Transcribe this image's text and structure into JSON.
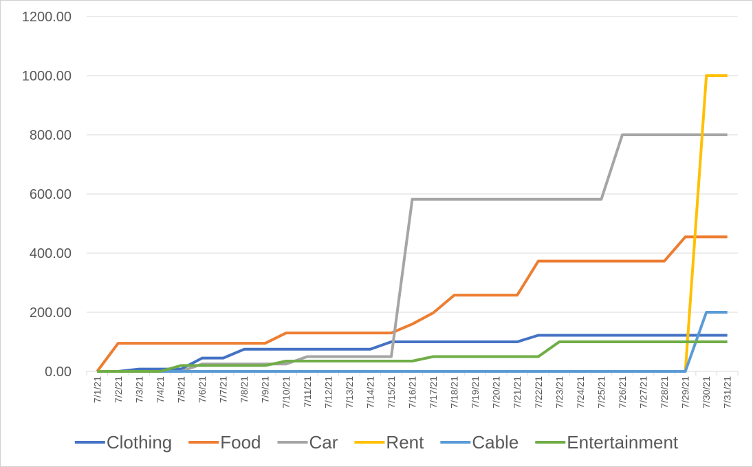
{
  "chart_data": {
    "type": "line",
    "title": "",
    "xlabel": "",
    "ylabel": "",
    "ylim": [
      0,
      1200
    ],
    "y_ticks": [
      "0.00",
      "200.00",
      "400.00",
      "600.00",
      "800.00",
      "1000.00",
      "1200.00"
    ],
    "grid": true,
    "legend_position": "bottom",
    "categories": [
      "7/1/21",
      "7/2/21",
      "7/3/21",
      "7/4/21",
      "7/5/21",
      "7/6/21",
      "7/7/21",
      "7/8/21",
      "7/9/21",
      "7/10/21",
      "7/11/21",
      "7/12/21",
      "7/13/21",
      "7/14/21",
      "7/15/21",
      "7/16/21",
      "7/17/21",
      "7/18/21",
      "7/19/21",
      "7/20/21",
      "7/21/21",
      "7/22/21",
      "7/23/21",
      "7/24/21",
      "7/25/21",
      "7/26/21",
      "7/27/21",
      "7/28/21",
      "7/29/21",
      "7/30/21",
      "7/31/21"
    ],
    "series": [
      {
        "name": "Clothing",
        "color": "#4472C4",
        "values": [
          0,
          0,
          8,
          8,
          8,
          45,
          45,
          75,
          75,
          75,
          75,
          75,
          75,
          75,
          100,
          100,
          100,
          100,
          100,
          100,
          100,
          122,
          122,
          122,
          122,
          122,
          122,
          122,
          122,
          122,
          122
        ]
      },
      {
        "name": "Food",
        "color": "#ED7D31",
        "values": [
          0,
          95,
          95,
          95,
          95,
          95,
          95,
          95,
          95,
          130,
          130,
          130,
          130,
          130,
          130,
          160,
          198,
          258,
          258,
          258,
          258,
          373,
          373,
          373,
          373,
          373,
          373,
          373,
          455,
          455,
          455
        ]
      },
      {
        "name": "Car",
        "color": "#A5A5A5",
        "values": [
          0,
          0,
          0,
          0,
          0,
          25,
          25,
          25,
          25,
          25,
          50,
          50,
          50,
          50,
          50,
          582,
          582,
          582,
          582,
          582,
          582,
          582,
          582,
          582,
          582,
          800,
          800,
          800,
          800,
          800,
          800
        ]
      },
      {
        "name": "Rent",
        "color": "#FFC000",
        "values": [
          0,
          0,
          0,
          0,
          0,
          0,
          0,
          0,
          0,
          0,
          0,
          0,
          0,
          0,
          0,
          0,
          0,
          0,
          0,
          0,
          0,
          0,
          0,
          0,
          0,
          0,
          0,
          0,
          0,
          1000,
          1000
        ]
      },
      {
        "name": "Cable",
        "color": "#5B9BD5",
        "values": [
          0,
          0,
          0,
          0,
          0,
          0,
          0,
          0,
          0,
          0,
          0,
          0,
          0,
          0,
          0,
          0,
          0,
          0,
          0,
          0,
          0,
          0,
          0,
          0,
          0,
          0,
          0,
          0,
          0,
          200,
          200
        ]
      },
      {
        "name": "Entertainment",
        "color": "#70AD47",
        "values": [
          0,
          0,
          0,
          0,
          20,
          20,
          20,
          20,
          20,
          35,
          35,
          35,
          35,
          35,
          35,
          35,
          50,
          50,
          50,
          50,
          50,
          50,
          100,
          100,
          100,
          100,
          100,
          100,
          100,
          100,
          100
        ]
      }
    ]
  }
}
